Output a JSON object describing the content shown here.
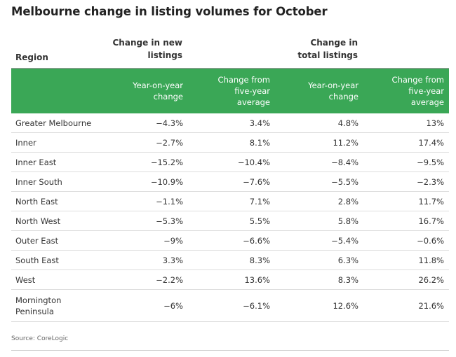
{
  "title": "Melbourne change in listing volumes for October",
  "header": {
    "region": "Region",
    "group_new": "Change in new\nlistings",
    "group_total": "Change in\ntotal listings",
    "columns": [
      "Year-on-year\nchange",
      "Change from\nfive-year\naverage",
      "Year-on-year\nchange",
      "Change from\nfive-year\naverage"
    ]
  },
  "accent_color": "#3aa756",
  "chart_data": {
    "type": "table",
    "title": "Melbourne change in listing volumes for October",
    "columns": [
      "Region",
      "Change in new listings: Year-on-year change",
      "Change in new listings: Change from five-year average",
      "Change in total listings: Year-on-year change",
      "Change in total listings: Change from five-year average"
    ],
    "rows": [
      [
        "Greater Melbourne",
        "−4.3%",
        "3.4%",
        "4.8%",
        "13%"
      ],
      [
        "Inner",
        "−2.7%",
        "8.1%",
        "11.2%",
        "17.4%"
      ],
      [
        "Inner East",
        "−15.2%",
        "−10.4%",
        "−8.4%",
        "−9.5%"
      ],
      [
        "Inner South",
        "−10.9%",
        "−7.6%",
        "−5.5%",
        "−2.3%"
      ],
      [
        "North East",
        "−1.1%",
        "7.1%",
        "2.8%",
        "11.7%"
      ],
      [
        "North West",
        "−5.3%",
        "5.5%",
        "5.8%",
        "16.7%"
      ],
      [
        "Outer East",
        "−9%",
        "−6.6%",
        "−5.4%",
        "−0.6%"
      ],
      [
        "South East",
        "3.3%",
        "8.3%",
        "6.3%",
        "11.8%"
      ],
      [
        "West",
        "−2.2%",
        "13.6%",
        "8.3%",
        "26.2%"
      ],
      [
        "Mornington\nPeninsula",
        "−6%",
        "−6.1%",
        "12.6%",
        "21.6%"
      ]
    ]
  },
  "source": "Source: CoreLogic"
}
